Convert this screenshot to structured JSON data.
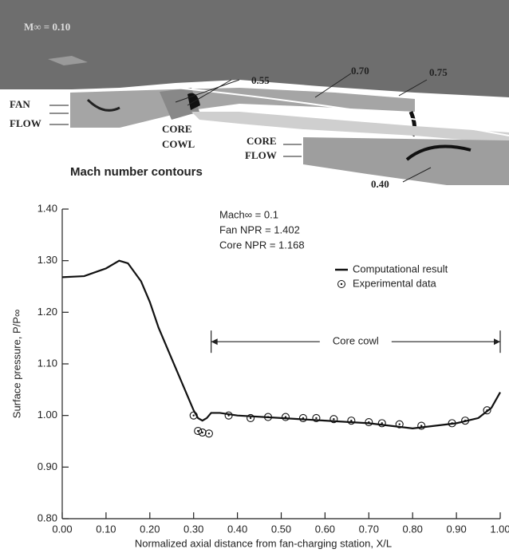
{
  "contour_figure": {
    "freestream_label": "M∞ = 0.10",
    "contour_labels": [
      "0.55",
      "0.70",
      "0.75",
      "0.40"
    ],
    "fan_flow": [
      "FAN",
      "FLOW"
    ],
    "core_cowl": [
      "CORE",
      "COWL"
    ],
    "core_flow": [
      "CORE",
      "FLOW"
    ],
    "caption": "Mach number contours"
  },
  "chart_data": {
    "type": "line",
    "xlabel": "Normalized axial distance from fan-charging station, X/L",
    "ylabel": "Surface pressure, P/P∞",
    "annotations": [
      "Mach∞ = 0.1",
      "Fan NPR = 1.402",
      "Core NPR = 1.168"
    ],
    "span": {
      "label": "Core cowl",
      "x": [
        0.34,
        1.0
      ],
      "y": 1.143
    },
    "legend": "upper right",
    "series": [
      {
        "name": "Computational result",
        "type": "line",
        "color": "#111111",
        "x": [
          0.0,
          0.05,
          0.1,
          0.13,
          0.15,
          0.18,
          0.2,
          0.22,
          0.25,
          0.28,
          0.3,
          0.31,
          0.32,
          0.33,
          0.34,
          0.36,
          0.4,
          0.5,
          0.6,
          0.7,
          0.75,
          0.8,
          0.85,
          0.9,
          0.95,
          0.98,
          1.0
        ],
        "values": [
          1.268,
          1.27,
          1.285,
          1.3,
          1.295,
          1.26,
          1.22,
          1.17,
          1.11,
          1.05,
          1.01,
          0.995,
          0.99,
          0.995,
          1.005,
          1.005,
          1.0,
          0.995,
          0.99,
          0.985,
          0.98,
          0.975,
          0.98,
          0.985,
          0.995,
          1.015,
          1.045
        ]
      },
      {
        "name": "Experimental data",
        "type": "scatter",
        "color": "#111111",
        "x": [
          0.3,
          0.31,
          0.32,
          0.335,
          0.38,
          0.43,
          0.47,
          0.51,
          0.55,
          0.58,
          0.62,
          0.66,
          0.7,
          0.73,
          0.77,
          0.82,
          0.89,
          0.92,
          0.97
        ],
        "values": [
          1.0,
          0.97,
          0.967,
          0.965,
          1.0,
          0.995,
          0.997,
          0.997,
          0.995,
          0.995,
          0.993,
          0.99,
          0.987,
          0.985,
          0.983,
          0.98,
          0.985,
          0.99,
          1.01
        ]
      }
    ],
    "xlim": [
      0,
      1.0
    ],
    "xticks": [
      {
        "value": 0,
        "label": "0.00"
      },
      {
        "value": 0.1,
        "label": "0.10"
      },
      {
        "value": 0.2,
        "label": "0.20"
      },
      {
        "value": 0.3,
        "label": "0.30"
      },
      {
        "value": 0.4,
        "label": "0.40"
      },
      {
        "value": 0.5,
        "label": "0.50"
      },
      {
        "value": 0.6,
        "label": "0.60"
      },
      {
        "value": 0.7,
        "label": "0.70"
      },
      {
        "value": 0.8,
        "label": "0.80"
      },
      {
        "value": 0.9,
        "label": "0.90"
      },
      {
        "value": 1.0,
        "label": "1.00"
      }
    ],
    "ylim": [
      0.8,
      1.4
    ],
    "yticks": [
      {
        "value": 0.8,
        "label": "0.80"
      },
      {
        "value": 0.9,
        "label": "0.90"
      },
      {
        "value": 1.0,
        "label": "1.00"
      },
      {
        "value": 1.1,
        "label": "1.10"
      },
      {
        "value": 1.2,
        "label": "1.20"
      },
      {
        "value": 1.3,
        "label": "1.30"
      },
      {
        "value": 1.4,
        "label": "1.40"
      }
    ],
    "grid": false
  }
}
